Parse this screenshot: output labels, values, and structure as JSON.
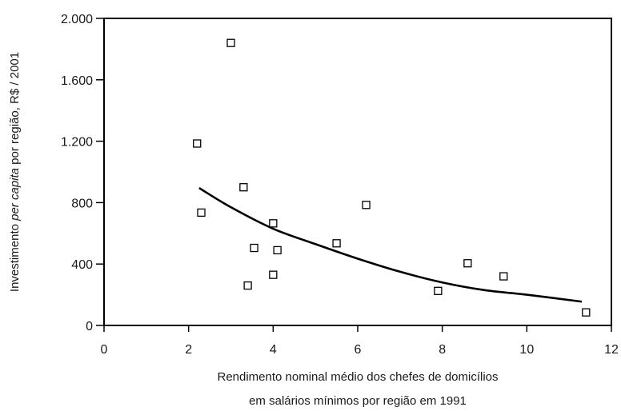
{
  "chart_data": {
    "type": "scatter",
    "title": "",
    "xlabel_lines": [
      "Rendimento nominal médio dos chefes de domicílios",
      "em salários mínimos por região em 1991"
    ],
    "ylabel_parts": [
      "Investimento ",
      "per capita",
      " por região, R$  / 2001"
    ],
    "xlim": [
      0,
      12
    ],
    "ylim": [
      0,
      2000
    ],
    "x_ticks": [
      {
        "value": 0,
        "label": "0"
      },
      {
        "value": 2,
        "label": "2"
      },
      {
        "value": 4,
        "label": "4"
      },
      {
        "value": 6,
        "label": "6"
      },
      {
        "value": 8,
        "label": "8"
      },
      {
        "value": 10,
        "label": "10"
      },
      {
        "value": 12,
        "label": "12"
      }
    ],
    "y_ticks": [
      {
        "value": 0,
        "label": "0"
      },
      {
        "value": 400,
        "label": "400"
      },
      {
        "value": 800,
        "label": "800"
      },
      {
        "value": 1200,
        "label": "1.200"
      },
      {
        "value": 1600,
        "label": "1.600"
      },
      {
        "value": 2000,
        "label": "2.000"
      }
    ],
    "grid": false,
    "points": [
      {
        "x": 2.2,
        "y": 1185
      },
      {
        "x": 2.3,
        "y": 735
      },
      {
        "x": 3.0,
        "y": 1840
      },
      {
        "x": 3.3,
        "y": 900
      },
      {
        "x": 3.4,
        "y": 260
      },
      {
        "x": 3.55,
        "y": 505
      },
      {
        "x": 4.0,
        "y": 665
      },
      {
        "x": 4.0,
        "y": 330
      },
      {
        "x": 4.1,
        "y": 490
      },
      {
        "x": 5.5,
        "y": 535
      },
      {
        "x": 6.2,
        "y": 785
      },
      {
        "x": 7.9,
        "y": 225
      },
      {
        "x": 8.6,
        "y": 405
      },
      {
        "x": 9.45,
        "y": 320
      },
      {
        "x": 11.4,
        "y": 85
      }
    ],
    "trend": [
      {
        "x": 2.25,
        "y": 895
      },
      {
        "x": 3.0,
        "y": 770
      },
      {
        "x": 4.0,
        "y": 630
      },
      {
        "x": 5.0,
        "y": 530
      },
      {
        "x": 6.0,
        "y": 435
      },
      {
        "x": 7.0,
        "y": 350
      },
      {
        "x": 8.0,
        "y": 280
      },
      {
        "x": 9.0,
        "y": 230
      },
      {
        "x": 10.0,
        "y": 200
      },
      {
        "x": 11.3,
        "y": 155
      }
    ]
  }
}
